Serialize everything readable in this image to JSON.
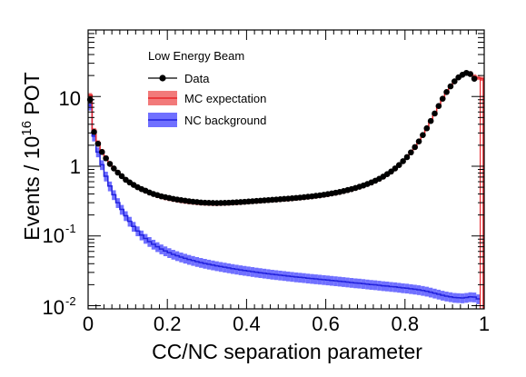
{
  "chart_data": {
    "type": "line",
    "xlabel": "CC/NC separation parameter",
    "ylabel_main": "Events / 10",
    "ylabel_exp": "16",
    "ylabel_tail": " POT",
    "xlim": [
      0,
      1
    ],
    "ylim": [
      0.009,
      90
    ],
    "yscale": "log",
    "grid": false,
    "legend_position": "top-left",
    "x_tick_labels": [
      "0",
      "0.2",
      "0.4",
      "0.6",
      "0.8",
      "1"
    ],
    "y_tick_labels": {
      "t10": "10",
      "t1": "1",
      "t01_base": "10",
      "t01_exp": "-1",
      "t001_base": "10",
      "t001_exp": "-2"
    },
    "legend": {
      "header": "Low Energy Beam",
      "data_label": "Data",
      "mc_label": "MC expectation",
      "nc_label": "NC background"
    },
    "colors": {
      "data": "#000000",
      "mc_line": "#e8252b",
      "mc_band": "#f27a7a",
      "nc_line": "#2222dd",
      "nc_band": "#7070ff"
    },
    "series": [
      {
        "name": "Data",
        "x": [
          0.005,
          0.015,
          0.025,
          0.035,
          0.045,
          0.055,
          0.065,
          0.075,
          0.085,
          0.095,
          0.105,
          0.115,
          0.125,
          0.135,
          0.145,
          0.155,
          0.165,
          0.175,
          0.185,
          0.195,
          0.205,
          0.215,
          0.225,
          0.235,
          0.245,
          0.255,
          0.265,
          0.275,
          0.285,
          0.295,
          0.305,
          0.315,
          0.325,
          0.335,
          0.345,
          0.355,
          0.365,
          0.375,
          0.385,
          0.395,
          0.405,
          0.415,
          0.425,
          0.435,
          0.445,
          0.455,
          0.465,
          0.475,
          0.485,
          0.495,
          0.505,
          0.515,
          0.525,
          0.535,
          0.545,
          0.555,
          0.565,
          0.575,
          0.585,
          0.595,
          0.605,
          0.615,
          0.625,
          0.635,
          0.645,
          0.655,
          0.665,
          0.675,
          0.685,
          0.695,
          0.705,
          0.715,
          0.725,
          0.735,
          0.745,
          0.755,
          0.765,
          0.775,
          0.785,
          0.795,
          0.805,
          0.815,
          0.825,
          0.835,
          0.845,
          0.855,
          0.865,
          0.875,
          0.885,
          0.895,
          0.905,
          0.915,
          0.925,
          0.935,
          0.945,
          0.955,
          0.965,
          0.975,
          0.985
        ],
        "y": [
          9.0,
          3.1,
          2.1,
          1.6,
          1.3,
          1.08,
          0.93,
          0.81,
          0.72,
          0.64,
          0.585,
          0.54,
          0.5,
          0.47,
          0.445,
          0.42,
          0.4,
          0.385,
          0.37,
          0.36,
          0.35,
          0.34,
          0.333,
          0.326,
          0.32,
          0.315,
          0.31,
          0.306,
          0.302,
          0.3,
          0.298,
          0.297,
          0.296,
          0.297,
          0.298,
          0.3,
          0.302,
          0.304,
          0.306,
          0.309,
          0.312,
          0.315,
          0.318,
          0.321,
          0.324,
          0.327,
          0.33,
          0.333,
          0.336,
          0.34,
          0.343,
          0.347,
          0.351,
          0.355,
          0.36,
          0.365,
          0.37,
          0.376,
          0.382,
          0.39,
          0.398,
          0.407,
          0.417,
          0.428,
          0.44,
          0.455,
          0.47,
          0.488,
          0.508,
          0.53,
          0.556,
          0.585,
          0.62,
          0.66,
          0.71,
          0.77,
          0.84,
          0.93,
          1.04,
          1.18,
          1.35,
          1.58,
          1.88,
          2.27,
          2.8,
          3.5,
          4.45,
          5.7,
          7.3,
          9.3,
          11.6,
          14.0,
          16.5,
          18.8,
          20.5,
          21.8,
          21.0,
          18.0,
          0.0
        ]
      },
      {
        "name": "MC expectation",
        "x": [
          0.005,
          0.015,
          0.025,
          0.035,
          0.045,
          0.055,
          0.065,
          0.075,
          0.085,
          0.095,
          0.105,
          0.115,
          0.125,
          0.135,
          0.145,
          0.155,
          0.165,
          0.175,
          0.185,
          0.195,
          0.205,
          0.215,
          0.225,
          0.235,
          0.245,
          0.255,
          0.265,
          0.275,
          0.285,
          0.295,
          0.305,
          0.315,
          0.325,
          0.335,
          0.345,
          0.355,
          0.365,
          0.375,
          0.385,
          0.395,
          0.405,
          0.415,
          0.425,
          0.435,
          0.445,
          0.455,
          0.465,
          0.475,
          0.485,
          0.495,
          0.505,
          0.515,
          0.525,
          0.535,
          0.545,
          0.555,
          0.565,
          0.575,
          0.585,
          0.595,
          0.605,
          0.615,
          0.625,
          0.635,
          0.645,
          0.655,
          0.665,
          0.675,
          0.685,
          0.695,
          0.705,
          0.715,
          0.725,
          0.735,
          0.745,
          0.755,
          0.765,
          0.775,
          0.785,
          0.795,
          0.805,
          0.815,
          0.825,
          0.835,
          0.845,
          0.855,
          0.865,
          0.875,
          0.885,
          0.895,
          0.905,
          0.915,
          0.925,
          0.935,
          0.945,
          0.955,
          0.965,
          0.975,
          0.985,
          0.995
        ],
        "y": [
          10.5,
          3.3,
          2.2,
          1.65,
          1.33,
          1.1,
          0.94,
          0.82,
          0.72,
          0.645,
          0.585,
          0.538,
          0.497,
          0.465,
          0.438,
          0.414,
          0.394,
          0.377,
          0.363,
          0.351,
          0.341,
          0.332,
          0.324,
          0.317,
          0.311,
          0.306,
          0.302,
          0.298,
          0.295,
          0.293,
          0.291,
          0.29,
          0.29,
          0.291,
          0.292,
          0.294,
          0.296,
          0.298,
          0.301,
          0.304,
          0.307,
          0.31,
          0.313,
          0.316,
          0.319,
          0.322,
          0.325,
          0.328,
          0.331,
          0.334,
          0.337,
          0.341,
          0.345,
          0.349,
          0.354,
          0.359,
          0.364,
          0.37,
          0.376,
          0.383,
          0.391,
          0.4,
          0.41,
          0.421,
          0.433,
          0.447,
          0.462,
          0.48,
          0.5,
          0.522,
          0.548,
          0.577,
          0.612,
          0.652,
          0.7,
          0.76,
          0.83,
          0.92,
          1.03,
          1.17,
          1.34,
          1.56,
          1.86,
          2.25,
          2.77,
          3.46,
          4.4,
          5.6,
          7.2,
          9.2,
          11.5,
          13.9,
          16.4,
          18.7,
          20.4,
          21.6,
          21.5,
          19.5,
          18.5,
          18.0
        ]
      },
      {
        "name": "NC background",
        "x": [
          0.005,
          0.015,
          0.025,
          0.035,
          0.045,
          0.055,
          0.065,
          0.075,
          0.085,
          0.095,
          0.105,
          0.115,
          0.125,
          0.135,
          0.145,
          0.155,
          0.165,
          0.175,
          0.185,
          0.195,
          0.205,
          0.215,
          0.225,
          0.235,
          0.245,
          0.255,
          0.265,
          0.275,
          0.285,
          0.295,
          0.305,
          0.315,
          0.325,
          0.335,
          0.345,
          0.355,
          0.365,
          0.375,
          0.385,
          0.395,
          0.405,
          0.415,
          0.425,
          0.435,
          0.445,
          0.455,
          0.465,
          0.475,
          0.485,
          0.495,
          0.505,
          0.515,
          0.525,
          0.535,
          0.545,
          0.555,
          0.565,
          0.575,
          0.585,
          0.595,
          0.605,
          0.615,
          0.625,
          0.635,
          0.645,
          0.655,
          0.665,
          0.675,
          0.685,
          0.695,
          0.705,
          0.715,
          0.725,
          0.735,
          0.745,
          0.755,
          0.765,
          0.775,
          0.785,
          0.795,
          0.805,
          0.815,
          0.825,
          0.835,
          0.845,
          0.855,
          0.865,
          0.875,
          0.885,
          0.895,
          0.905,
          0.915,
          0.925,
          0.935,
          0.945,
          0.955,
          0.965,
          0.975,
          0.985
        ],
        "y": [
          7.5,
          2.7,
          1.6,
          1.05,
          0.72,
          0.52,
          0.39,
          0.3,
          0.24,
          0.195,
          0.162,
          0.137,
          0.118,
          0.103,
          0.092,
          0.083,
          0.076,
          0.07,
          0.065,
          0.061,
          0.0575,
          0.0545,
          0.052,
          0.0498,
          0.0478,
          0.046,
          0.0444,
          0.0429,
          0.0416,
          0.0404,
          0.0393,
          0.0383,
          0.0373,
          0.0364,
          0.0356,
          0.0348,
          0.034,
          0.0333,
          0.0326,
          0.032,
          0.0314,
          0.0308,
          0.0302,
          0.0297,
          0.0292,
          0.0287,
          0.0282,
          0.0278,
          0.0274,
          0.027,
          0.0266,
          0.0262,
          0.0258,
          0.0255,
          0.0252,
          0.0248,
          0.0245,
          0.0242,
          0.0239,
          0.0236,
          0.0233,
          0.023,
          0.0227,
          0.0224,
          0.0221,
          0.0218,
          0.0215,
          0.0212,
          0.021,
          0.0207,
          0.0204,
          0.0201,
          0.0199,
          0.0196,
          0.0193,
          0.0191,
          0.0188,
          0.0186,
          0.0183,
          0.018,
          0.0178,
          0.0175,
          0.0172,
          0.0169,
          0.0165,
          0.0161,
          0.0156,
          0.0151,
          0.0146,
          0.0141,
          0.0137,
          0.0134,
          0.0131,
          0.013,
          0.0129,
          0.0131,
          0.0134,
          0.0133,
          0.0125
        ]
      }
    ]
  }
}
